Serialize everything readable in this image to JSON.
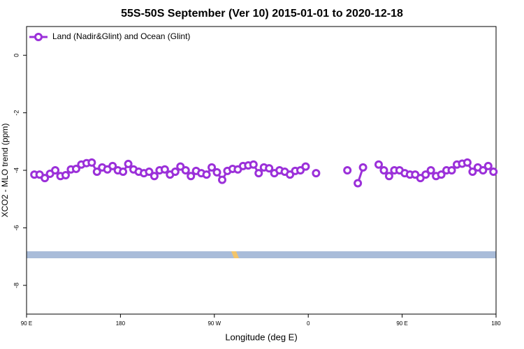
{
  "chart_data": {
    "type": "line",
    "title": "55S-50S September (Ver 10)   2015-01-01 to 2020-12-18",
    "x_label": "Longitude (deg E)",
    "y_label": "XCO2 - MLO trend (ppm)",
    "x": [
      97.5,
      102.5,
      107.5,
      112.5,
      117.5,
      122.5,
      127.5,
      132.5,
      137.5,
      142.5,
      147.5,
      152.5,
      157.5,
      162.5,
      167.5,
      172.5,
      177.5,
      182.5,
      187.5,
      192.5,
      197.5,
      202.5,
      207.5,
      212.5,
      217.5,
      222.5,
      227.5,
      232.5,
      237.5,
      242.5,
      247.5,
      252.5,
      257.5,
      262.5,
      267.5,
      272.5,
      277.5,
      282.5,
      287.5,
      292.5,
      297.5,
      302.5,
      307.5,
      312.5,
      317.5,
      322.5,
      327.5,
      332.5,
      337.5,
      342.5,
      347.5,
      352.5,
      357.5,
      362.5,
      367.5,
      372.5,
      377.5,
      382.5,
      387.5,
      392.5,
      397.5,
      402.5,
      407.5,
      412.5,
      417.5,
      422.5,
      427.5,
      432.5,
      437.5,
      442.5,
      447.5,
      452.5,
      457.5,
      462.5,
      467.5,
      472.5,
      477.5,
      482.5,
      487.5,
      492.5,
      497.5,
      502.5,
      507.5,
      512.5,
      517.5,
      522.5,
      527.5,
      532.5,
      537.5
    ],
    "series": [
      {
        "name": "Land (Nadir&Glint) and Ocean (Glint)",
        "color": "#9b30d9",
        "values": [
          -4.15,
          -4.15,
          -4.27,
          -4.12,
          -4.0,
          -4.2,
          -4.17,
          -3.97,
          -3.95,
          -3.8,
          -3.75,
          -3.73,
          -4.05,
          -3.9,
          -3.97,
          -3.85,
          -4.0,
          -4.05,
          -3.78,
          -3.97,
          -4.05,
          -4.1,
          -4.05,
          -4.2,
          -4.0,
          -3.97,
          -4.15,
          -4.05,
          -3.87,
          -4.0,
          -4.2,
          -4.02,
          -4.1,
          -4.15,
          -3.9,
          -4.07,
          -4.33,
          -4.02,
          -3.95,
          -3.97,
          -3.85,
          -3.83,
          -3.8,
          -4.1,
          -3.9,
          -3.93,
          -4.1,
          -4.0,
          -4.05,
          -4.15,
          -4.02,
          -4.0,
          -3.87,
          null,
          -4.1,
          null,
          null,
          null,
          null,
          null,
          -4.0,
          null,
          -4.45,
          -3.9,
          null,
          null,
          -3.8,
          -4.0,
          -4.2,
          -4.0,
          -4.0,
          -4.1,
          -4.15,
          -4.15,
          -4.27,
          -4.15,
          -4.0,
          -4.2,
          -4.15,
          -4.0,
          -4.0,
          -3.8,
          -3.77,
          -3.73,
          -4.05,
          -3.9,
          -4.0,
          -3.85,
          -4.05
        ]
      }
    ],
    "xlim": [
      90,
      540
    ],
    "xticks": [
      {
        "value": 90,
        "label": "90 E"
      },
      180,
      {
        "value": 270,
        "label": "90 W"
      },
      {
        "value": 360,
        "label": "0"
      },
      {
        "value": 450,
        "label": "90 E"
      },
      {
        "value": 540,
        "label": "180"
      }
    ],
    "ylim": [
      -9,
      1
    ],
    "yticks": [
      0,
      -2,
      -4,
      -6,
      -8
    ],
    "legend": "top-left"
  }
}
